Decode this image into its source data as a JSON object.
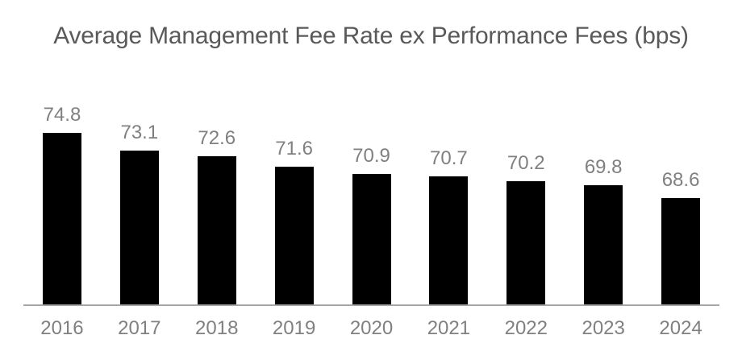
{
  "chart_data": {
    "type": "bar",
    "title": "Average Management Fee Rate ex Performance Fees (bps)",
    "categories": [
      "2016",
      "2017",
      "2018",
      "2019",
      "2020",
      "2021",
      "2022",
      "2023",
      "2024"
    ],
    "values": [
      74.8,
      73.1,
      72.6,
      71.6,
      70.9,
      70.7,
      70.2,
      69.8,
      68.6
    ],
    "xlabel": "",
    "ylabel": "",
    "ylim": [
      58.5,
      78.2
    ],
    "grid": false,
    "legend": false,
    "data_labels": true,
    "colors": {
      "bar": "#000000",
      "title_text": "#595959",
      "label_text": "#808080",
      "axis_line": "#a6a6a6",
      "background": "#ffffff"
    }
  }
}
